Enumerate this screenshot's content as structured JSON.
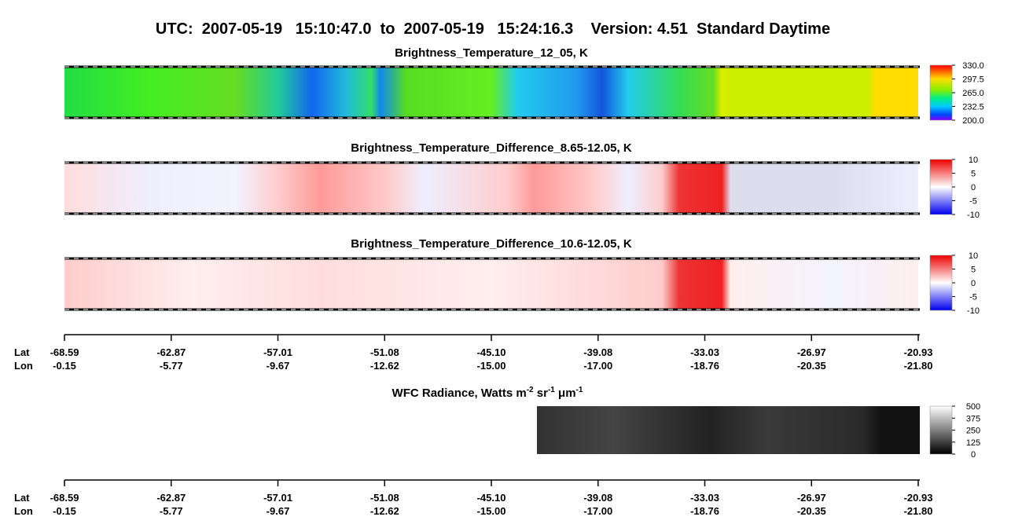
{
  "title": "UTC:  2007-05-19   15:10:47.0  to  2007-05-19   15:24:16.3    Version: 4.51  Standard Daytime",
  "panels": [
    {
      "title": "Brightness_Temperature_12_05, K",
      "ticks": [
        {
          "value": 330,
          "label": "330.0"
        },
        {
          "value": 297.5,
          "label": "297.5"
        },
        {
          "value": 265,
          "label": "265.0"
        },
        {
          "value": 232.5,
          "label": "232.5"
        },
        {
          "value": 200,
          "label": "200.0"
        }
      ]
    },
    {
      "title": "Brightness_Temperature_Difference_8.65-12.05, K",
      "ticks": [
        10,
        5,
        0,
        -5,
        -10
      ]
    },
    {
      "title": "Brightness_Temperature_Difference_10.6-12.05, K",
      "ticks": [
        10,
        5,
        0,
        -5,
        -10
      ]
    },
    {
      "title_parts": [
        "WFC Radiance, Watts m",
        "-2",
        " sr",
        "-1",
        " μm",
        "-1"
      ],
      "ticks": [
        500,
        375,
        250,
        125,
        0
      ]
    }
  ],
  "axes": [
    {
      "lat_label": "Lat",
      "lon_label": "Lon",
      "lat": [
        -68.59,
        -62.87,
        -57.01,
        -51.08,
        {
          "value": -45.1,
          "label": "-45.10"
        },
        -39.08,
        -33.03,
        -26.97,
        -20.93
      ],
      "lon": [
        -0.15,
        -5.77,
        -9.67,
        -12.62,
        {
          "value": -15,
          "label": "-15.00"
        },
        {
          "value": -17,
          "label": "-17.00"
        },
        -18.76,
        -20.35,
        {
          "value": -21.8,
          "label": "-21.80"
        }
      ]
    },
    {
      "lat_label": "Lat",
      "lon_label": "Lon",
      "lat": [
        -68.59,
        -62.87,
        -57.01,
        -51.08,
        {
          "value": -45.1,
          "label": "-45.10"
        },
        -39.08,
        -33.03,
        -26.97,
        -20.93
      ],
      "lon": [
        -0.15,
        -5.77,
        -9.67,
        -12.62,
        {
          "value": -15,
          "label": "-15.00"
        },
        {
          "value": -17,
          "label": "-17.00"
        },
        -18.76,
        -20.35,
        {
          "value": -21.8,
          "label": "-21.80"
        }
      ]
    }
  ]
}
